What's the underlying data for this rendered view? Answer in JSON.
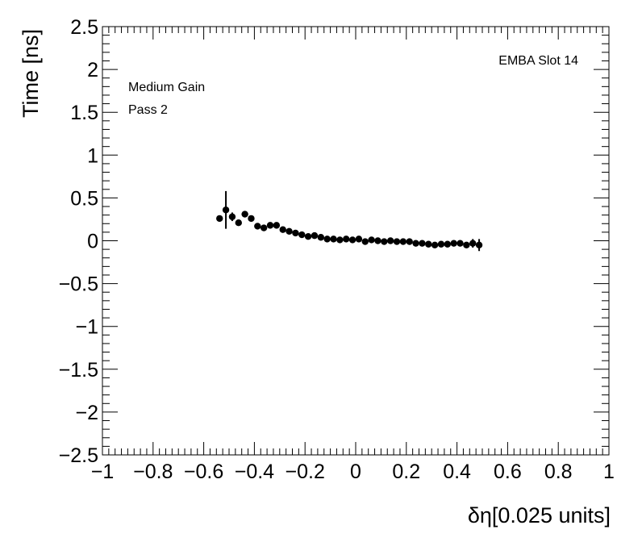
{
  "chart_data": {
    "type": "scatter",
    "xlabel": "δη[0.025 units]",
    "ylabel": "Time [ns]",
    "xlim": [
      -1,
      1
    ],
    "ylim": [
      -2.5,
      2.5
    ],
    "grid": false,
    "x_ticks": [
      -1,
      -0.8,
      -0.6,
      -0.4,
      -0.2,
      0,
      0.2,
      0.4,
      0.6,
      0.8,
      1
    ],
    "x_tick_labels": [
      "−1",
      "−0.8",
      "−0.6",
      "−0.4",
      "−0.2",
      "0",
      "0.2",
      "0.4",
      "0.6",
      "0.8",
      "1"
    ],
    "y_ticks": [
      2.5,
      2,
      1.5,
      1,
      0.5,
      0,
      -0.5,
      -1,
      -1.5,
      -2,
      -2.5
    ],
    "y_tick_labels": [
      "2.5",
      "2",
      "1.5",
      "1",
      "0.5",
      "0",
      "−0.5",
      "−1",
      "−1.5",
      "−2",
      "−2.5"
    ],
    "annotations": {
      "top_right": "EMBA Slot 14",
      "line1": "Medium Gain",
      "line2": "Pass 2"
    },
    "marker_color": "#000000",
    "series": [
      {
        "x": [
          -0.5375,
          -0.5125,
          -0.4875,
          -0.4625,
          -0.4375,
          -0.4125,
          -0.3875,
          -0.3625,
          -0.3375,
          -0.3125,
          -0.2875,
          -0.2625,
          -0.2375,
          -0.2125,
          -0.1875,
          -0.1625,
          -0.1375,
          -0.1125,
          -0.0875,
          -0.0625,
          -0.0375,
          -0.0125,
          0.0125,
          0.0375,
          0.0625,
          0.0875,
          0.1125,
          0.1375,
          0.1625,
          0.1875,
          0.2125,
          0.2375,
          0.2625,
          0.2875,
          0.3125,
          0.3375,
          0.3625,
          0.3875,
          0.4125,
          0.4375,
          0.4625,
          0.4875
        ],
        "y": [
          0.26,
          0.36,
          0.28,
          0.21,
          0.31,
          0.26,
          0.17,
          0.15,
          0.18,
          0.18,
          0.13,
          0.11,
          0.09,
          0.07,
          0.05,
          0.06,
          0.04,
          0.02,
          0.02,
          0.01,
          0.02,
          0.01,
          0.02,
          -0.01,
          0.01,
          0.0,
          -0.01,
          0.0,
          -0.01,
          -0.01,
          -0.01,
          -0.03,
          -0.03,
          -0.04,
          -0.05,
          -0.04,
          -0.04,
          -0.03,
          -0.03,
          -0.05,
          -0.03,
          -0.05
        ],
        "err": [
          0.02,
          0.22,
          0.05,
          0.02,
          0.02,
          0.02,
          0.02,
          0.02,
          0.02,
          0.02,
          0.02,
          0.02,
          0.02,
          0.02,
          0.02,
          0.02,
          0.02,
          0.02,
          0.02,
          0.02,
          0.02,
          0.02,
          0.02,
          0.02,
          0.02,
          0.02,
          0.02,
          0.02,
          0.02,
          0.02,
          0.02,
          0.02,
          0.02,
          0.02,
          0.02,
          0.02,
          0.02,
          0.02,
          0.02,
          0.02,
          0.05,
          0.07
        ]
      }
    ]
  }
}
